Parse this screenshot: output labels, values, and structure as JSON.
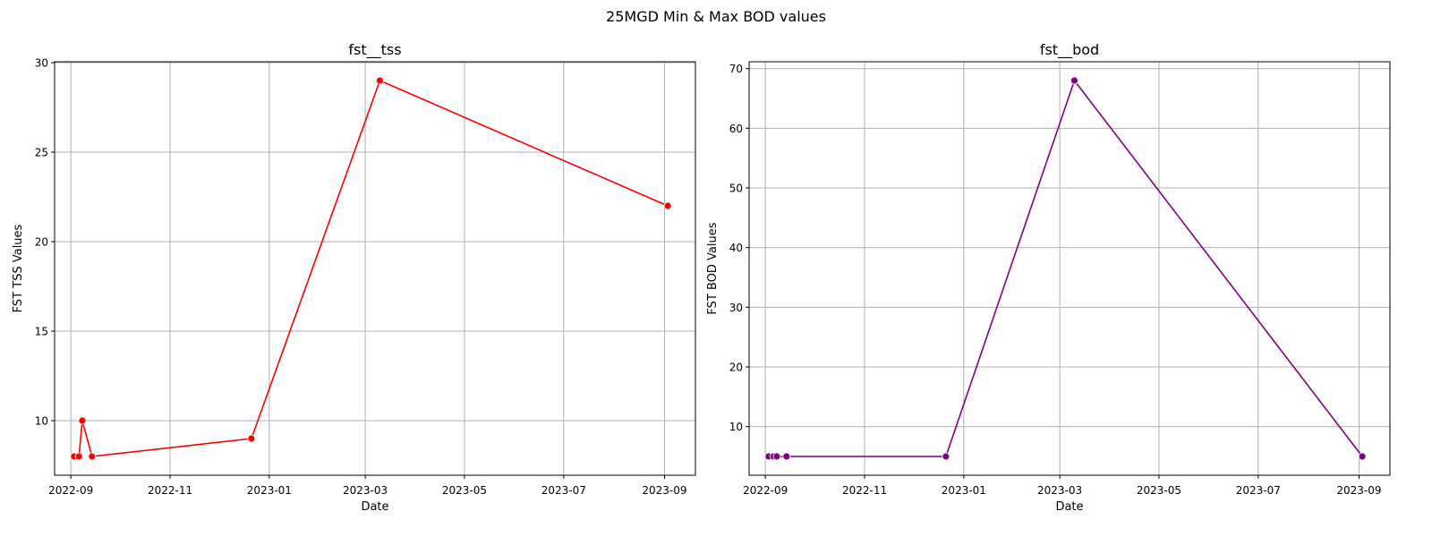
{
  "figure": {
    "suptitle": "25MGD Min & Max BOD values"
  },
  "chart_data": [
    {
      "type": "line",
      "title": "fst__tss",
      "xlabel": "Date",
      "ylabel": "FST TSS Values",
      "x_is_date": true,
      "xlim": [
        "2022-08-22",
        "2023-09-20"
      ],
      "ylim": [
        6.95,
        30.05
      ],
      "xticks": [
        "2022-09-01",
        "2022-11-01",
        "2023-01-01",
        "2023-03-01",
        "2023-05-01",
        "2023-07-01",
        "2023-09-01"
      ],
      "xtick_labels": [
        "2022-09",
        "2022-11",
        "2023-01",
        "2023-03",
        "2023-05",
        "2023-07",
        "2023-09"
      ],
      "yticks": [
        10,
        15,
        20,
        25,
        30
      ],
      "ytick_labels": [
        "10",
        "15",
        "20",
        "25",
        "30"
      ],
      "grid": true,
      "color": "#ff0000",
      "marker": "circle",
      "series": [
        {
          "x": [
            "2022-09-03",
            "2022-09-06",
            "2022-09-08",
            "2022-09-14",
            "2022-12-21",
            "2023-03-10",
            "2023-09-03"
          ],
          "y": [
            8,
            8,
            10,
            8,
            9,
            29,
            22
          ]
        }
      ]
    },
    {
      "type": "line",
      "title": "fst__bod",
      "xlabel": "Date",
      "ylabel": "FST BOD Values",
      "x_is_date": true,
      "xlim": [
        "2022-08-22",
        "2023-09-20"
      ],
      "ylim": [
        1.85,
        71.15
      ],
      "xticks": [
        "2022-09-01",
        "2022-11-01",
        "2023-01-01",
        "2023-03-01",
        "2023-05-01",
        "2023-07-01",
        "2023-09-01"
      ],
      "xtick_labels": [
        "2022-09",
        "2022-11",
        "2023-01",
        "2023-03",
        "2023-05",
        "2023-07",
        "2023-09"
      ],
      "yticks": [
        10,
        20,
        30,
        40,
        50,
        60,
        70
      ],
      "ytick_labels": [
        "10",
        "20",
        "30",
        "40",
        "50",
        "60",
        "70"
      ],
      "grid": true,
      "color": "#800080",
      "marker": "circle",
      "series": [
        {
          "x": [
            "2022-09-03",
            "2022-09-06",
            "2022-09-08",
            "2022-09-14",
            "2022-12-21",
            "2023-03-10",
            "2023-09-03"
          ],
          "y": [
            5,
            5,
            5,
            5,
            5,
            68,
            5
          ]
        }
      ]
    }
  ]
}
